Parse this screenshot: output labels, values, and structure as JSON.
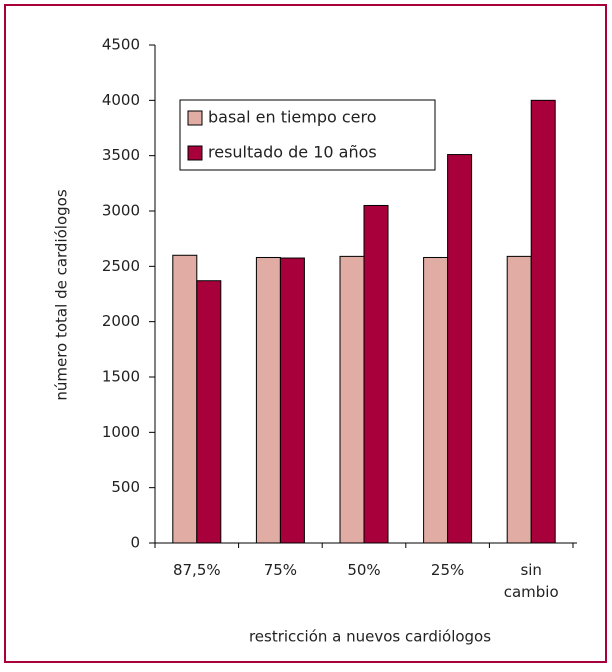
{
  "chart_data": {
    "type": "bar",
    "categories": [
      "87,5%",
      "75%",
      "50%",
      "25%",
      "sin cambio"
    ],
    "series": [
      {
        "name": "basal en tiempo cero",
        "color": "#e0aca4",
        "values": [
          2600,
          2580,
          2590,
          2580,
          2590
        ]
      },
      {
        "name": "resultado de 10 años",
        "color": "#a8003a",
        "values": [
          2370,
          2575,
          3050,
          3510,
          4000
        ]
      }
    ],
    "ylabel": "número total de cardiólogos",
    "xlabel": "restricción a nuevos cardiólogos",
    "ylim": [
      0,
      4500
    ],
    "yticks": [
      0,
      500,
      1000,
      1500,
      2000,
      2500,
      3000,
      3500,
      4000,
      4500
    ],
    "grid": false
  }
}
